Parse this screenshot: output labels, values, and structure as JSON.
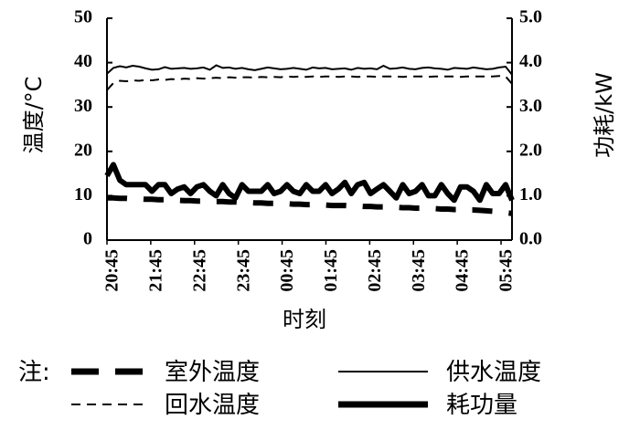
{
  "chart_data": {
    "type": "line",
    "xlabel": "时刻",
    "ylabel_left": "温度/°C",
    "ylabel_right": "功耗/kW",
    "ylim_left": [
      0,
      50
    ],
    "ylim_right": [
      0.0,
      5.0
    ],
    "yticks_left": [
      "0",
      "10",
      "20",
      "30",
      "40",
      "50"
    ],
    "yticks_right": [
      "0.0",
      "1.0",
      "2.0",
      "3.0",
      "4.0",
      "5.0"
    ],
    "xlim": [
      "20:45",
      "06:00"
    ],
    "xtick_labels": [
      "20:45",
      "21:45",
      "22:45",
      "23:45",
      "00:45",
      "01:45",
      "02:45",
      "03:45",
      "04:45",
      "05:45"
    ],
    "grid": false,
    "legend_prefix": "注:",
    "legend_position": "bottom",
    "series": [
      {
        "name": "室外温度",
        "axis": "left",
        "style": "thick-dashed",
        "values": [
          9.5,
          9.5,
          9.4,
          9.4,
          9.3,
          9.3,
          9.2,
          9.2,
          9.1,
          9.1,
          9.0,
          9.0,
          8.9,
          8.9,
          8.8,
          8.8,
          8.8,
          8.7,
          8.7,
          8.6,
          8.6,
          8.5,
          8.5,
          8.4,
          8.4,
          8.3,
          8.3,
          8.2,
          8.2,
          8.1,
          8.1,
          8.0,
          8.0,
          7.9,
          7.9,
          7.8,
          7.8,
          7.8,
          7.7,
          7.7,
          7.6,
          7.6,
          7.5,
          7.5,
          7.4,
          7.4,
          7.3,
          7.3,
          7.2,
          7.2,
          7.1,
          7.1,
          7.0,
          7.0,
          6.9,
          6.9,
          6.8,
          6.8,
          6.7,
          6.6,
          6.5,
          6.4,
          6.2,
          6.0
        ]
      },
      {
        "name": "供水温度",
        "axis": "left",
        "style": "thin-solid",
        "values": [
          37.5,
          38.8,
          39.2,
          38.9,
          39.3,
          39.1,
          38.7,
          38.4,
          38.5,
          39.0,
          38.6,
          38.7,
          38.8,
          38.6,
          38.7,
          38.9,
          38.4,
          39.4,
          38.8,
          38.9,
          38.6,
          38.8,
          38.5,
          38.3,
          38.6,
          38.9,
          38.7,
          38.5,
          38.6,
          38.8,
          38.6,
          38.4,
          38.9,
          38.7,
          38.8,
          38.5,
          38.6,
          38.7,
          38.4,
          38.8,
          38.6,
          38.7,
          38.5,
          39.3,
          38.6,
          38.7,
          38.9,
          38.6,
          38.5,
          38.8,
          38.9,
          38.7,
          38.6,
          38.4,
          38.8,
          38.7,
          38.6,
          38.9,
          38.7,
          38.5,
          38.6,
          38.9,
          39.1,
          37.3
        ]
      },
      {
        "name": "回水温度",
        "axis": "left",
        "style": "thin-dashed",
        "values": [
          33.8,
          35.4,
          35.9,
          35.8,
          36.0,
          35.9,
          36.1,
          36.0,
          36.2,
          36.1,
          36.3,
          36.2,
          36.4,
          36.3,
          36.5,
          36.4,
          36.5,
          36.6,
          36.5,
          36.7,
          36.6,
          36.7,
          36.7,
          36.6,
          36.8,
          36.7,
          36.8,
          36.7,
          36.9,
          36.8,
          36.9,
          36.8,
          36.9,
          36.8,
          36.9,
          36.9,
          36.8,
          36.9,
          36.9,
          36.8,
          36.9,
          36.9,
          36.8,
          36.9,
          36.9,
          36.9,
          36.8,
          36.9,
          36.9,
          36.9,
          36.8,
          36.9,
          36.9,
          36.9,
          36.9,
          36.8,
          36.9,
          36.9,
          36.9,
          36.9,
          36.9,
          37.0,
          36.9,
          35.2
        ]
      },
      {
        "name": "耗功量",
        "axis": "right",
        "style": "thick-solid",
        "values": [
          1.45,
          1.7,
          1.35,
          1.25,
          1.25,
          1.25,
          1.25,
          1.1,
          1.25,
          1.25,
          1.05,
          1.15,
          1.2,
          1.05,
          1.2,
          1.25,
          1.1,
          1.0,
          1.25,
          1.05,
          0.95,
          1.25,
          1.1,
          1.1,
          1.1,
          1.25,
          1.05,
          1.1,
          1.25,
          1.1,
          1.05,
          1.25,
          1.1,
          1.1,
          1.25,
          1.05,
          1.15,
          1.3,
          1.05,
          1.25,
          1.3,
          1.05,
          1.15,
          1.25,
          1.1,
          0.95,
          1.25,
          1.05,
          1.1,
          1.25,
          1.0,
          1.0,
          1.25,
          1.05,
          0.9,
          1.2,
          1.2,
          1.1,
          0.9,
          1.25,
          1.05,
          1.05,
          1.25,
          0.9
        ]
      }
    ]
  }
}
